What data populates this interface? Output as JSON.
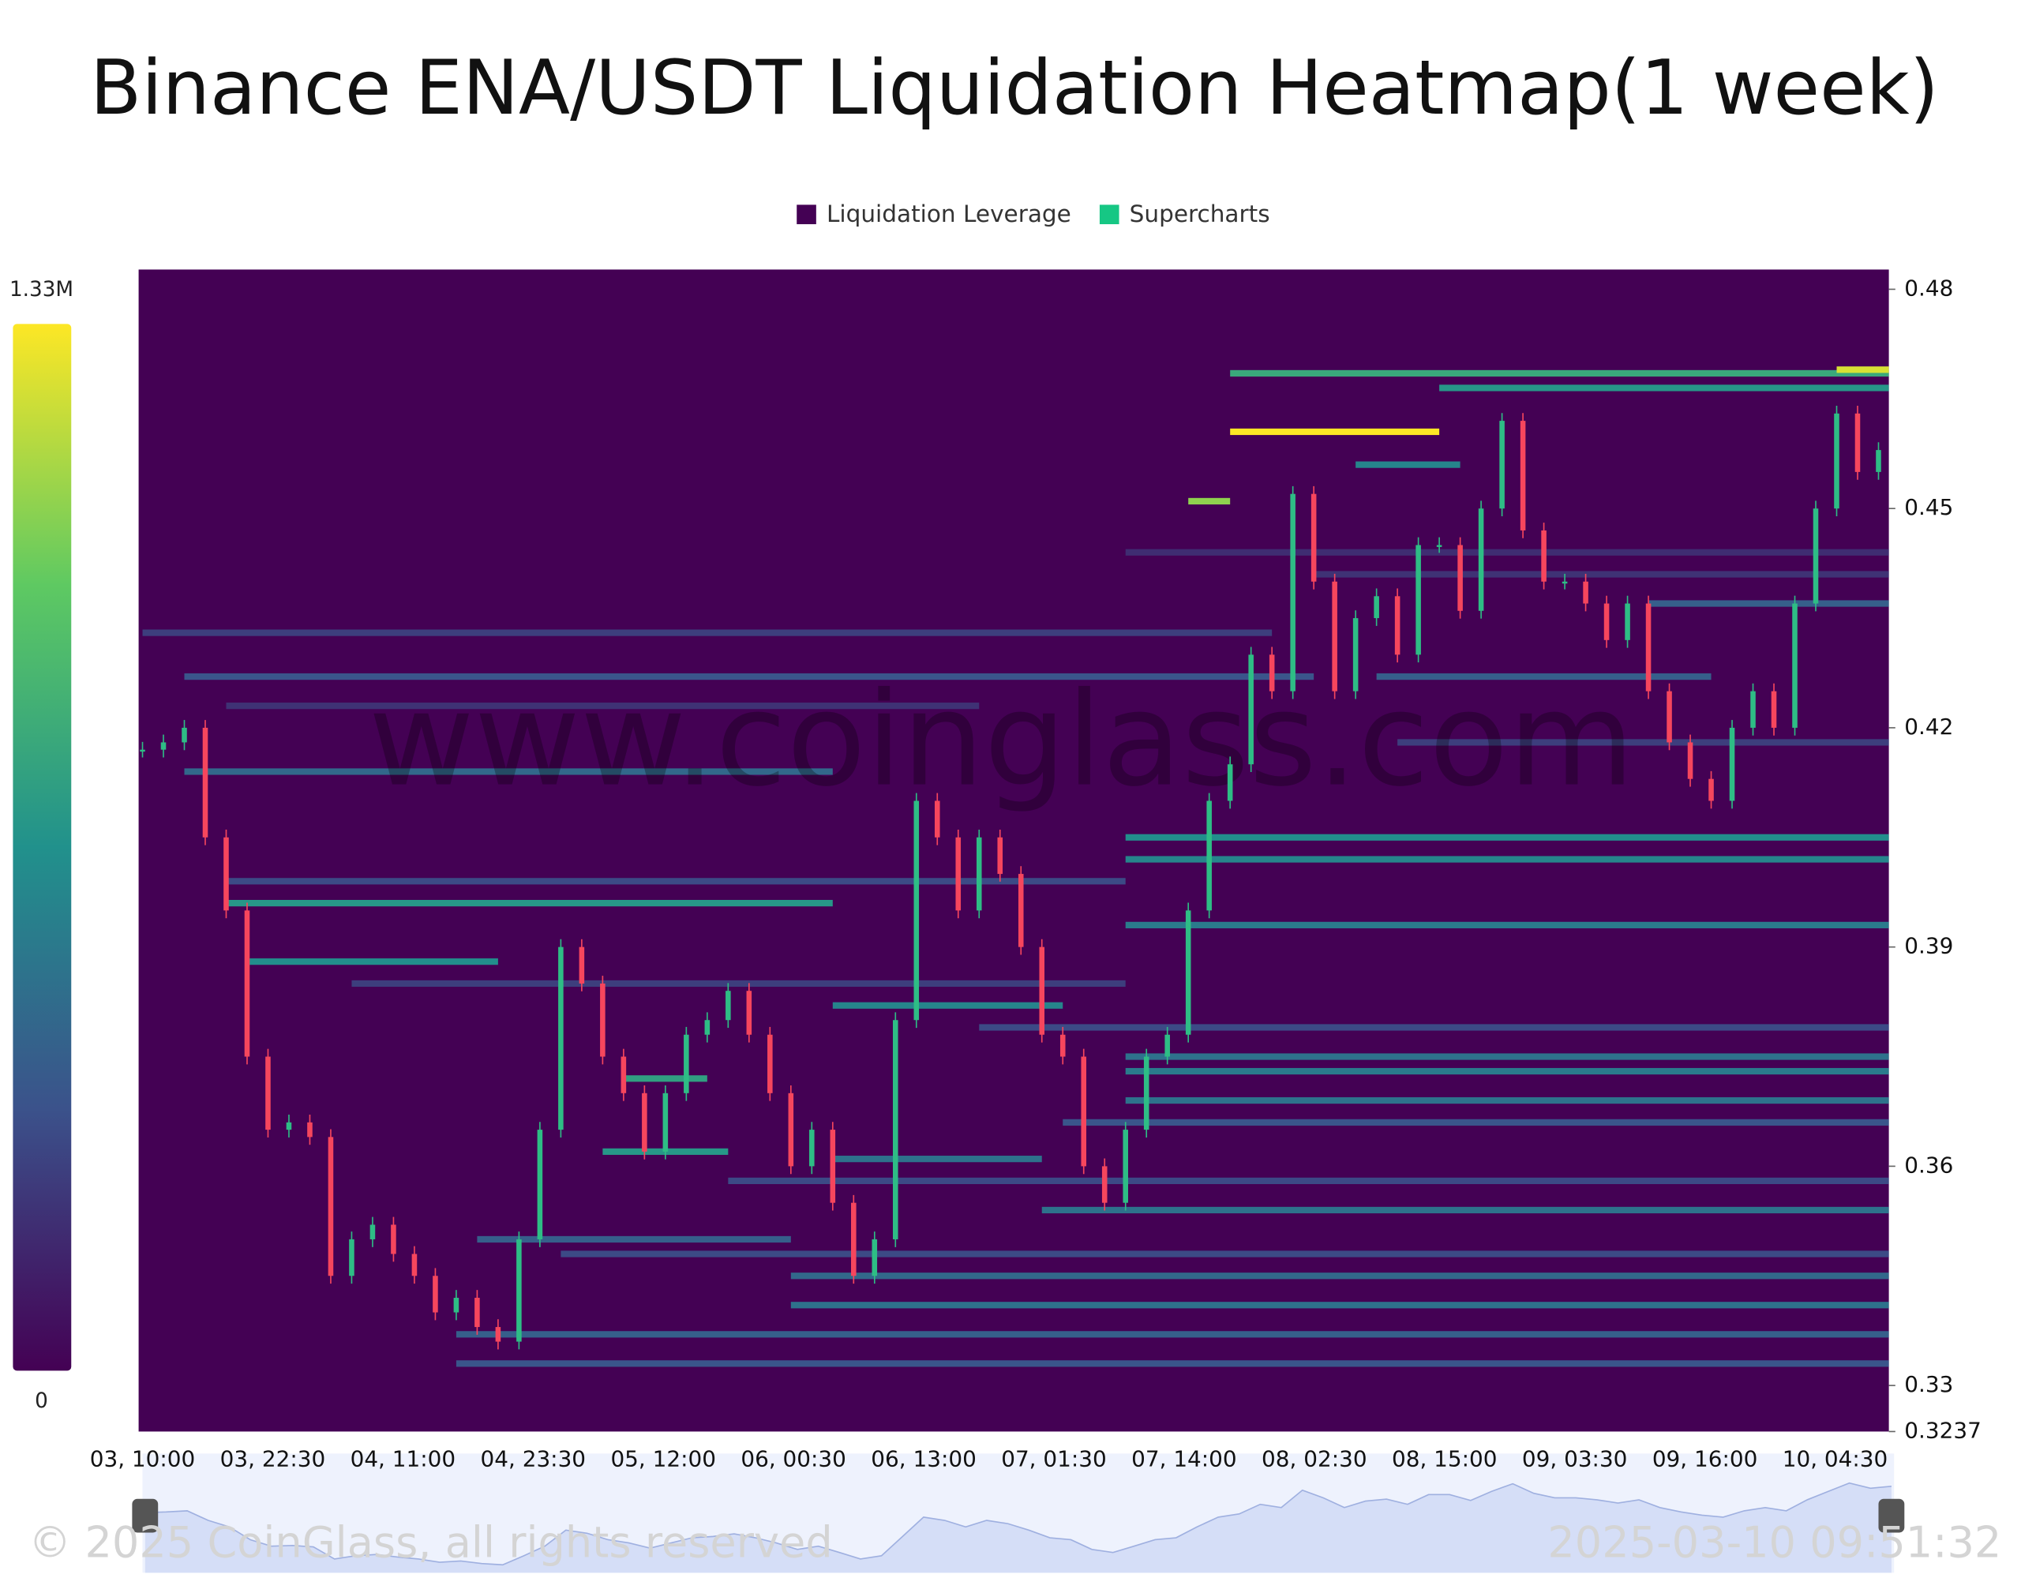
{
  "chart_data": {
    "type": "heatmap",
    "title": "Binance ENA/USDT Liquidation Heatmap(1 week)",
    "legend": [
      {
        "name": "Liquidation Leverage",
        "color": "#440154"
      },
      {
        "name": "Supercharts",
        "color": "#16c784"
      }
    ],
    "watermark": "www.coinglass.com",
    "copyright": "© 2025 CoinGlass, all rights reserved",
    "timestamp": "2025-03-10 09:51:32",
    "categories": [
      "03, 10:00",
      "03, 22:30",
      "04, 11:00",
      "04, 23:30",
      "05, 12:00",
      "06, 00:30",
      "06, 13:00",
      "07, 01:30",
      "07, 14:00",
      "08, 02:30",
      "08, 15:00",
      "09, 03:30",
      "09, 16:00",
      "10, 04:30"
    ],
    "ylim": [
      0.3237,
      0.4827
    ],
    "yticks": [
      0.48,
      0.45,
      0.42,
      0.39,
      0.36,
      0.33,
      0.3237
    ],
    "zlim": [
      0,
      1330000
    ],
    "zticks": [
      0,
      {
        "value": 1330000,
        "label": "1.33M"
      }
    ],
    "colorscale": [
      "#440154",
      "#3b528b",
      "#21918c",
      "#5ec962",
      "#fde725"
    ],
    "up_color": "#2ebd85",
    "down_color": "#f6465d",
    "price": [
      0.417,
      0.418,
      0.42,
      0.405,
      0.395,
      0.375,
      0.365,
      0.366,
      0.364,
      0.345,
      0.35,
      0.352,
      0.348,
      0.345,
      0.34,
      0.342,
      0.338,
      0.336,
      0.35,
      0.365,
      0.39,
      0.385,
      0.375,
      0.37,
      0.362,
      0.37,
      0.378,
      0.38,
      0.384,
      0.378,
      0.37,
      0.36,
      0.365,
      0.355,
      0.345,
      0.35,
      0.38,
      0.41,
      0.405,
      0.395,
      0.405,
      0.4,
      0.39,
      0.378,
      0.375,
      0.36,
      0.355,
      0.365,
      0.375,
      0.378,
      0.395,
      0.41,
      0.415,
      0.43,
      0.425,
      0.452,
      0.44,
      0.425,
      0.435,
      0.438,
      0.43,
      0.445,
      0.445,
      0.436,
      0.45,
      0.462,
      0.447,
      0.44,
      0.44,
      0.437,
      0.432,
      0.437,
      0.425,
      0.418,
      0.413,
      0.41,
      0.42,
      0.425,
      0.42,
      0.437,
      0.45,
      0.463,
      0.455,
      0.458
    ],
    "bands": [
      {
        "price": 0.4685,
        "start": 52,
        "end": 83,
        "value": 800000
      },
      {
        "price": 0.4665,
        "start": 62,
        "end": 83,
        "value": 700000
      },
      {
        "price": 0.4605,
        "start": 52,
        "end": 62,
        "value": 1330000
      },
      {
        "price": 0.451,
        "start": 50,
        "end": 52,
        "value": 1100000
      },
      {
        "price": 0.469,
        "start": 81,
        "end": 83,
        "value": 1250000
      },
      {
        "price": 0.456,
        "start": 58,
        "end": 63,
        "value": 600000
      },
      {
        "price": 0.444,
        "start": 47,
        "end": 83,
        "value": 180000
      },
      {
        "price": 0.441,
        "start": 56,
        "end": 83,
        "value": 200000
      },
      {
        "price": 0.437,
        "start": 72,
        "end": 83,
        "value": 400000
      },
      {
        "price": 0.433,
        "start": 0,
        "end": 54,
        "value": 250000
      },
      {
        "price": 0.427,
        "start": 2,
        "end": 56,
        "value": 350000
      },
      {
        "price": 0.427,
        "start": 59,
        "end": 75,
        "value": 400000
      },
      {
        "price": 0.423,
        "start": 4,
        "end": 40,
        "value": 200000
      },
      {
        "price": 0.418,
        "start": 60,
        "end": 83,
        "value": 250000
      },
      {
        "price": 0.414,
        "start": 2,
        "end": 33,
        "value": 450000
      },
      {
        "price": 0.405,
        "start": 47,
        "end": 83,
        "value": 650000
      },
      {
        "price": 0.402,
        "start": 47,
        "end": 83,
        "value": 600000
      },
      {
        "price": 0.399,
        "start": 4,
        "end": 47,
        "value": 300000
      },
      {
        "price": 0.396,
        "start": 4,
        "end": 33,
        "value": 700000
      },
      {
        "price": 0.393,
        "start": 47,
        "end": 83,
        "value": 550000
      },
      {
        "price": 0.388,
        "start": 5,
        "end": 17,
        "value": 650000
      },
      {
        "price": 0.385,
        "start": 10,
        "end": 47,
        "value": 250000
      },
      {
        "price": 0.382,
        "start": 33,
        "end": 44,
        "value": 600000
      },
      {
        "price": 0.379,
        "start": 40,
        "end": 83,
        "value": 300000
      },
      {
        "price": 0.375,
        "start": 47,
        "end": 83,
        "value": 500000
      },
      {
        "price": 0.373,
        "start": 47,
        "end": 83,
        "value": 550000
      },
      {
        "price": 0.372,
        "start": 23,
        "end": 27,
        "value": 750000
      },
      {
        "price": 0.369,
        "start": 47,
        "end": 83,
        "value": 500000
      },
      {
        "price": 0.366,
        "start": 44,
        "end": 83,
        "value": 350000
      },
      {
        "price": 0.362,
        "start": 22,
        "end": 28,
        "value": 700000
      },
      {
        "price": 0.361,
        "start": 33,
        "end": 43,
        "value": 500000
      },
      {
        "price": 0.358,
        "start": 28,
        "end": 83,
        "value": 300000
      },
      {
        "price": 0.354,
        "start": 43,
        "end": 83,
        "value": 500000
      },
      {
        "price": 0.35,
        "start": 16,
        "end": 31,
        "value": 400000
      },
      {
        "price": 0.348,
        "start": 20,
        "end": 83,
        "value": 300000
      },
      {
        "price": 0.345,
        "start": 31,
        "end": 83,
        "value": 450000
      },
      {
        "price": 0.341,
        "start": 31,
        "end": 83,
        "value": 500000
      },
      {
        "price": 0.337,
        "start": 15,
        "end": 83,
        "value": 400000
      },
      {
        "price": 0.333,
        "start": 15,
        "end": 83,
        "value": 350000
      }
    ]
  }
}
